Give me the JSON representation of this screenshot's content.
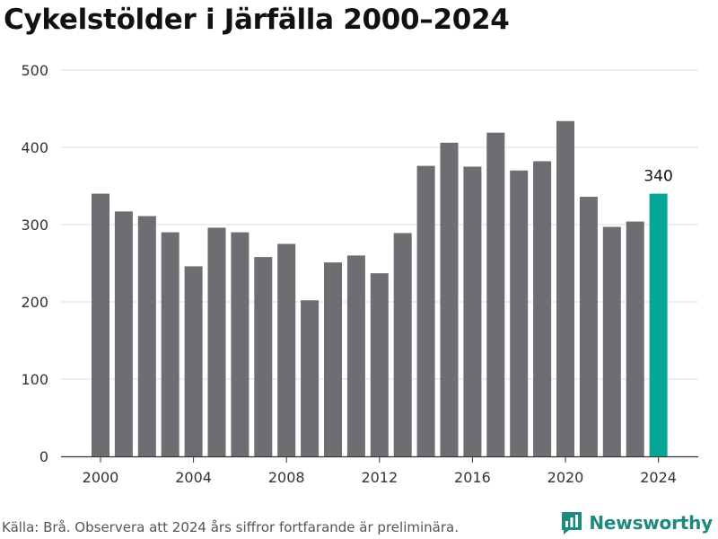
{
  "chart_data": {
    "type": "bar",
    "title": "Cykelstölder i Järfälla 2000–2024",
    "x": [
      2000,
      2001,
      2002,
      2003,
      2004,
      2005,
      2006,
      2007,
      2008,
      2009,
      2010,
      2011,
      2012,
      2013,
      2014,
      2015,
      2016,
      2017,
      2018,
      2019,
      2020,
      2021,
      2022,
      2023,
      2024
    ],
    "values": [
      340,
      317,
      311,
      290,
      246,
      296,
      290,
      258,
      275,
      202,
      251,
      260,
      237,
      289,
      376,
      406,
      375,
      419,
      370,
      382,
      434,
      336,
      297,
      304,
      340
    ],
    "highlight_x": 2024,
    "highlight_label": "340",
    "xticks": [
      "2000",
      "2004",
      "2008",
      "2012",
      "2016",
      "2020",
      "2024"
    ],
    "yticks": [
      "0",
      "100",
      "200",
      "300",
      "400",
      "500"
    ],
    "ylim": [
      0,
      500
    ],
    "xlabel": "",
    "ylabel": "",
    "grid": true,
    "colors": {
      "bar": "#6e6d72",
      "highlight": "#06a696",
      "grid": "#dddddd"
    }
  },
  "footer": {
    "source": "Källa: Brå. Observera att 2024 års siffror fortfarande är preliminära.",
    "brand": "Newsworthy",
    "brand_icon": "newsworthy-logo-icon"
  }
}
